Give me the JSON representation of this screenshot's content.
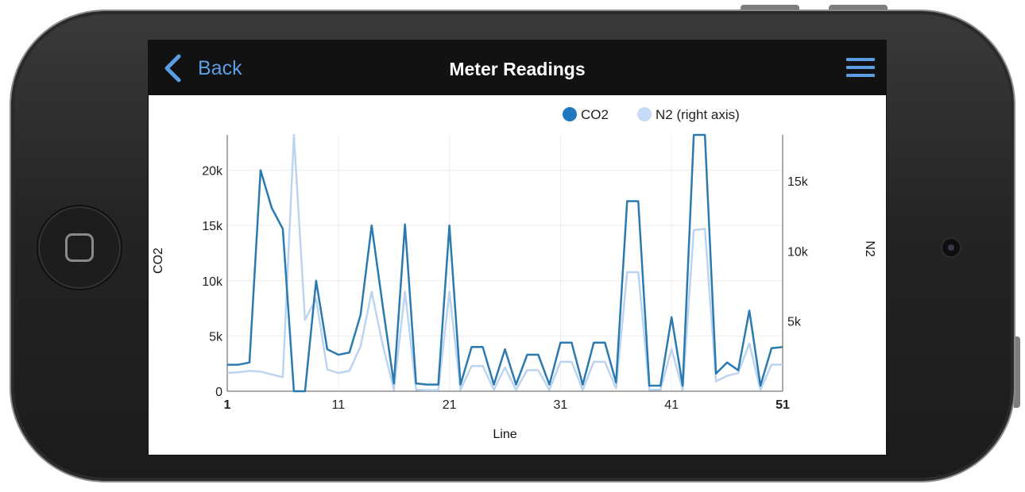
{
  "header": {
    "back_label": "Back",
    "title": "Meter Readings",
    "back_icon": "chevron-left-icon",
    "menu_icon": "hamburger-menu-icon"
  },
  "colors": {
    "nav_bg": "#121212",
    "accent": "#5b9ee6",
    "co2_line": "#2a7ab0",
    "n2_line": "#bcd4f0",
    "co2_legend": "#1f77c0",
    "n2_legend": "#c6dcf6"
  },
  "chart_data": {
    "type": "line",
    "xlabel": "Line",
    "x": [
      1,
      2,
      3,
      4,
      5,
      6,
      7,
      8,
      9,
      10,
      11,
      12,
      13,
      14,
      15,
      16,
      17,
      18,
      19,
      20,
      21,
      22,
      23,
      24,
      25,
      26,
      27,
      28,
      29,
      30,
      31,
      32,
      33,
      34,
      35,
      36,
      37,
      38,
      39,
      40,
      41,
      42,
      43,
      44,
      45,
      46,
      47,
      48,
      49,
      50,
      51
    ],
    "x_ticks": [
      "1",
      "11",
      "21",
      "31",
      "41",
      "51"
    ],
    "xlim": [
      1,
      51
    ],
    "legend_position": "top-right",
    "left_axis": {
      "label": "CO2",
      "ticks": [
        "0",
        "5k",
        "10k",
        "15k",
        "20k"
      ],
      "ylim": [
        0,
        23200
      ]
    },
    "right_axis": {
      "label": "N2",
      "ticks": [
        "5k",
        "10k",
        "15k"
      ],
      "ylim": [
        0,
        18300
      ]
    },
    "series": [
      {
        "name": "CO2",
        "axis": "left",
        "values": [
          2400,
          2400,
          2600,
          20000,
          16600,
          14700,
          0,
          0,
          10000,
          3800,
          3300,
          3500,
          6900,
          15000,
          7700,
          700,
          15100,
          700,
          600,
          600,
          15000,
          600,
          4000,
          4000,
          600,
          3800,
          600,
          3300,
          3300,
          600,
          4400,
          4400,
          600,
          4400,
          4400,
          800,
          17200,
          17200,
          500,
          500,
          6700,
          500,
          23200,
          23200,
          1600,
          2600,
          1900,
          7300,
          500,
          3900,
          4000
        ]
      },
      {
        "name": "N2 (right axis)",
        "axis": "right",
        "values": [
          1300,
          1350,
          1450,
          1400,
          1200,
          1000,
          18300,
          5100,
          6600,
          1550,
          1300,
          1450,
          3200,
          7100,
          3300,
          100,
          7100,
          100,
          80,
          80,
          7100,
          100,
          1800,
          1800,
          100,
          1700,
          100,
          1500,
          1500,
          100,
          2100,
          2100,
          100,
          2100,
          2100,
          200,
          8500,
          8500,
          100,
          100,
          3000,
          100,
          11500,
          11600,
          700,
          1100,
          1300,
          3400,
          100,
          1900,
          1900
        ]
      }
    ]
  }
}
